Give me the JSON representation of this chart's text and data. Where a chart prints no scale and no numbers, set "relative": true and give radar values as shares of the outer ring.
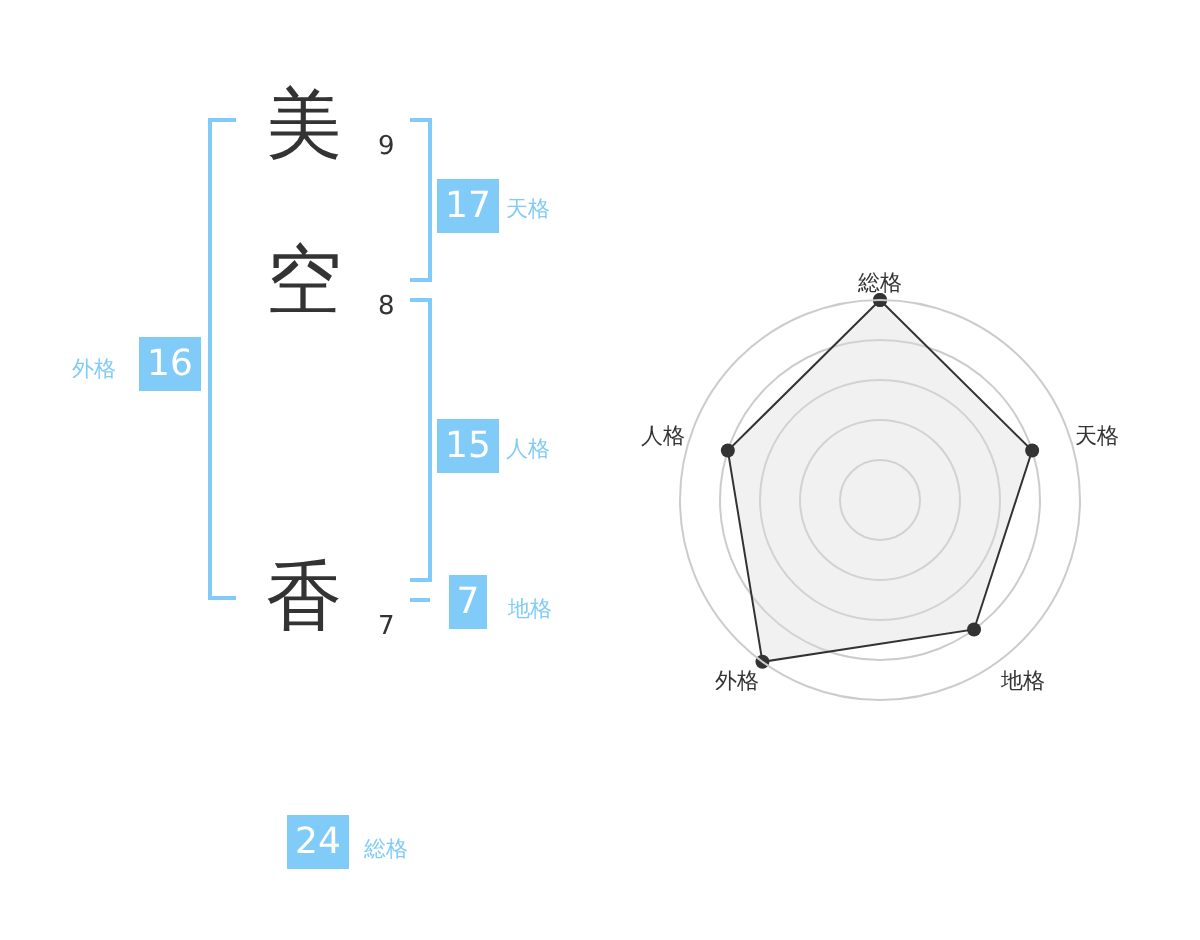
{
  "chart_data": [
    {
      "type": "other",
      "annotations": [
        "美",
        "9",
        "空",
        "8",
        "香",
        "7",
        "17",
        "天格",
        "15",
        "人格",
        "7",
        "地格",
        "16",
        "外格",
        "24",
        "総格"
      ]
    },
    {
      "type": "radar",
      "relative": true,
      "categories": [
        "総格",
        "天格",
        "地格",
        "外格",
        "人格"
      ],
      "marker": "circle",
      "grid": true,
      "series": [
        {
          "color": "#333333",
          "values": [
            1.0,
            0.8,
            0.8,
            1.0,
            0.8
          ]
        }
      ]
    }
  ]
}
